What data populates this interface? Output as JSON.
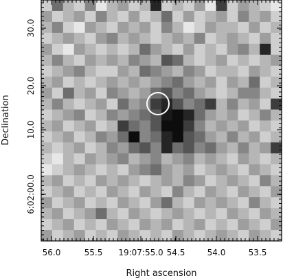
{
  "chart_data": {
    "type": "heatmap",
    "title": "",
    "xlabel": "Right ascension",
    "ylabel": "Declination",
    "x_tick_labels": [
      "56.0",
      "55.5",
      "19:07:55.0",
      "54.5",
      "54.0",
      "53.5"
    ],
    "y_tick_labels": [
      "30.0",
      "20.0",
      "10.0",
      "6:02:00.0"
    ],
    "colormap": "grayscale (dark = bright source)",
    "grid": false,
    "legend": "none",
    "annotations": [
      {
        "shape": "circle",
        "description": "source marker centered near RA 19:07:54.7, Dec 6:02:16"
      }
    ],
    "pixel_grid": {
      "columns": 22,
      "rows": 22,
      "values": [
        [
          0.2,
          0.6,
          0.3,
          0.2,
          0.5,
          0.1,
          0.3,
          0.4,
          0.2,
          0.3,
          0.9,
          0.2,
          0.3,
          0.2,
          0.4,
          0.1,
          0.8,
          0.2,
          0.4,
          0.3,
          0.2,
          0.1
        ],
        [
          0.4,
          0.2,
          0.3,
          0.4,
          0.2,
          0.5,
          0.3,
          0.2,
          0.4,
          0.2,
          0.3,
          0.6,
          0.2,
          0.4,
          0.2,
          0.3,
          0.4,
          0.2,
          0.5,
          0.3,
          0.4,
          0.2
        ],
        [
          0.3,
          0.5,
          0.2,
          0.1,
          0.4,
          0.3,
          0.2,
          0.4,
          0.3,
          0.4,
          0.2,
          0.5,
          0.3,
          0.1,
          0.2,
          0.4,
          0.3,
          0.3,
          0.2,
          0.4,
          0.2,
          0.3
        ],
        [
          0.2,
          0.3,
          0.4,
          0.3,
          0.2,
          0.4,
          0.5,
          0.3,
          0.4,
          0.3,
          0.2,
          0.3,
          0.4,
          0.3,
          0.5,
          0.2,
          0.3,
          0.4,
          0.3,
          0.2,
          0.4,
          0.2
        ],
        [
          0.4,
          0.2,
          0.1,
          0.4,
          0.3,
          0.2,
          0.3,
          0.2,
          0.3,
          0.6,
          0.4,
          0.3,
          0.2,
          0.4,
          0.2,
          0.3,
          0.2,
          0.4,
          0.5,
          0.3,
          0.9,
          0.2
        ],
        [
          0.3,
          0.5,
          0.3,
          0.2,
          0.4,
          0.3,
          0.4,
          0.3,
          0.5,
          0.4,
          0.3,
          0.7,
          0.6,
          0.3,
          0.2,
          0.3,
          0.4,
          0.2,
          0.3,
          0.2,
          0.3,
          0.4
        ],
        [
          0.2,
          0.3,
          0.4,
          0.5,
          0.3,
          0.2,
          0.2,
          0.4,
          0.3,
          0.6,
          0.5,
          0.4,
          0.3,
          0.5,
          0.4,
          0.2,
          0.3,
          0.3,
          0.2,
          0.4,
          0.3,
          0.2
        ],
        [
          0.3,
          0.4,
          0.2,
          0.3,
          0.2,
          0.3,
          0.4,
          0.3,
          0.4,
          0.3,
          0.4,
          0.5,
          0.6,
          0.4,
          0.3,
          0.4,
          0.2,
          0.4,
          0.3,
          0.6,
          0.2,
          0.3
        ],
        [
          0.4,
          0.2,
          0.6,
          0.3,
          0.4,
          0.2,
          0.5,
          0.4,
          0.3,
          0.4,
          0.6,
          0.7,
          0.5,
          0.6,
          0.4,
          0.3,
          0.2,
          0.3,
          0.5,
          0.5,
          0.3,
          0.2
        ],
        [
          0.3,
          0.5,
          0.3,
          0.2,
          0.3,
          0.4,
          0.2,
          0.6,
          0.4,
          0.5,
          0.8,
          0.9,
          0.7,
          0.5,
          0.6,
          0.8,
          0.3,
          0.5,
          0.3,
          0.4,
          0.2,
          0.8
        ],
        [
          0.2,
          0.3,
          0.4,
          0.5,
          0.2,
          0.3,
          0.5,
          0.4,
          0.5,
          0.6,
          0.7,
          0.95,
          1.0,
          0.9,
          0.6,
          0.4,
          0.3,
          0.4,
          0.2,
          0.3,
          0.5,
          0.3
        ],
        [
          0.3,
          0.4,
          0.2,
          0.3,
          0.4,
          0.2,
          0.3,
          0.8,
          0.6,
          0.5,
          0.7,
          1.0,
          1.0,
          0.8,
          0.5,
          0.3,
          0.4,
          0.3,
          0.4,
          0.2,
          0.3,
          0.2
        ],
        [
          0.2,
          0.3,
          0.4,
          0.2,
          0.3,
          0.5,
          0.4,
          0.6,
          1.0,
          0.5,
          0.6,
          0.9,
          1.0,
          0.7,
          0.6,
          0.4,
          0.3,
          0.5,
          0.3,
          0.4,
          0.2,
          0.3
        ],
        [
          0.3,
          0.2,
          0.3,
          0.4,
          0.2,
          0.3,
          0.5,
          0.4,
          0.6,
          0.7,
          0.5,
          0.9,
          0.6,
          0.7,
          0.5,
          0.6,
          0.4,
          0.3,
          0.5,
          0.3,
          0.4,
          0.8
        ],
        [
          0.2,
          0.1,
          0.3,
          0.2,
          0.4,
          0.3,
          0.4,
          0.5,
          0.3,
          0.4,
          0.5,
          0.3,
          0.4,
          0.5,
          0.3,
          0.4,
          0.3,
          0.2,
          0.4,
          0.3,
          0.2,
          0.3
        ],
        [
          0.1,
          0.2,
          0.3,
          0.4,
          0.3,
          0.2,
          0.3,
          0.2,
          0.4,
          0.5,
          0.6,
          0.4,
          0.3,
          0.4,
          0.2,
          0.3,
          0.4,
          0.3,
          0.2,
          0.4,
          0.3,
          0.2
        ],
        [
          0.3,
          0.4,
          0.2,
          0.3,
          0.2,
          0.4,
          0.3,
          0.4,
          0.3,
          0.2,
          0.3,
          0.4,
          0.3,
          0.5,
          0.4,
          0.2,
          0.3,
          0.4,
          0.3,
          0.2,
          0.5,
          0.3
        ],
        [
          0.2,
          0.3,
          0.4,
          0.2,
          0.3,
          0.2,
          0.4,
          0.3,
          0.2,
          0.4,
          0.3,
          0.2,
          0.5,
          0.3,
          0.2,
          0.4,
          0.3,
          0.2,
          0.4,
          0.3,
          0.2,
          0.4
        ],
        [
          0.4,
          0.2,
          0.3,
          0.4,
          0.2,
          0.3,
          0.2,
          0.4,
          0.3,
          0.2,
          0.4,
          0.6,
          0.3,
          0.2,
          0.4,
          0.3,
          0.4,
          0.3,
          0.2,
          0.5,
          0.3,
          0.2
        ],
        [
          0.3,
          0.4,
          0.2,
          0.3,
          0.4,
          0.6,
          0.3,
          0.2,
          0.4,
          0.3,
          0.2,
          0.3,
          0.4,
          0.3,
          0.2,
          0.3,
          0.2,
          0.4,
          0.3,
          0.2,
          0.4,
          0.3
        ],
        [
          0.2,
          0.3,
          0.4,
          0.2,
          0.3,
          0.2,
          0.4,
          0.3,
          0.2,
          0.4,
          0.3,
          0.4,
          0.2,
          0.3,
          0.4,
          0.2,
          0.3,
          0.2,
          0.4,
          0.3,
          0.2,
          0.4
        ],
        [
          0.4,
          0.2,
          0.3,
          0.4,
          0.2,
          0.3,
          0.2,
          0.4,
          0.3,
          0.2,
          0.3,
          0.2,
          0.4,
          0.3,
          0.2,
          0.3,
          0.4,
          0.3,
          0.2,
          0.4,
          0.3,
          0.2
        ]
      ]
    }
  }
}
